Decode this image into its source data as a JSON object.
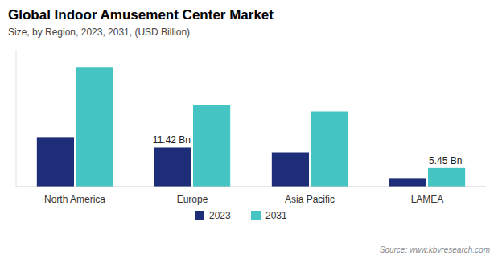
{
  "chart_data": {
    "type": "bar",
    "title": "Global  Indoor Amusement Center Market",
    "subtitle": "Size, by Region, 2023, 2031, (USD Billion)",
    "source": "Source: www.kbvresearch.com",
    "categories": [
      "North America",
      "Europe",
      "Asia Pacific",
      "LAMEA"
    ],
    "series": [
      {
        "name": "2023",
        "color": "#1e2d78",
        "values": [
          14.5,
          11.42,
          10.0,
          2.5
        ],
        "value_labels": [
          null,
          "11.42 Bn",
          null,
          null
        ]
      },
      {
        "name": "2031",
        "color": "#45c4c4",
        "values": [
          35.0,
          24.0,
          22.0,
          5.45
        ],
        "value_labels": [
          null,
          null,
          null,
          "5.45 Bn"
        ]
      }
    ],
    "ylim": [
      0,
      40
    ],
    "tick_labels": "x",
    "grid": false,
    "legend": "bottom"
  }
}
